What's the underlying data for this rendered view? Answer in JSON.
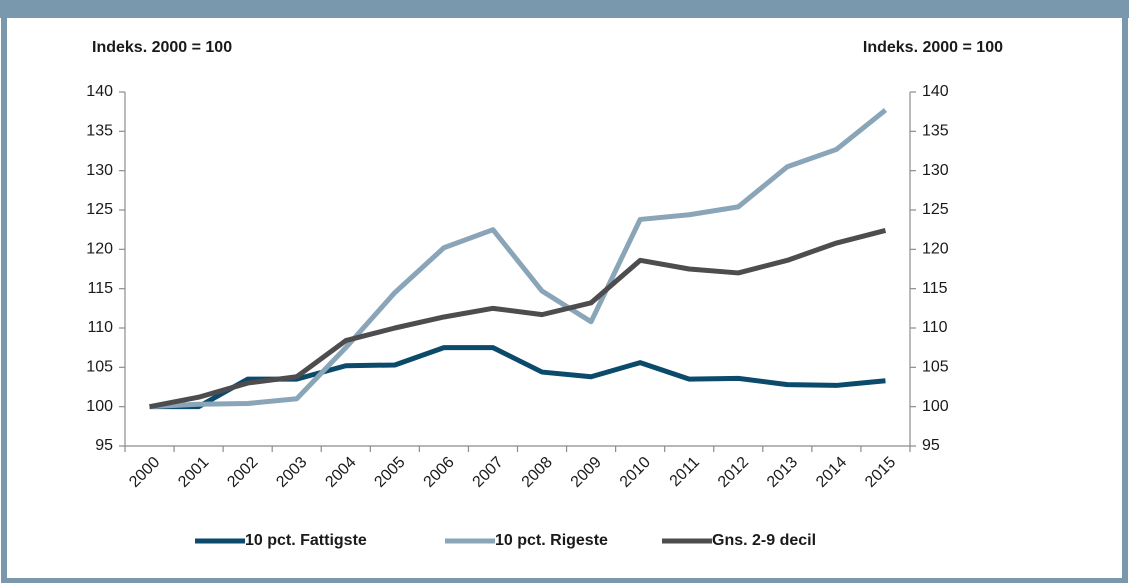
{
  "chart_data": {
    "type": "line",
    "ylabel": "Indeks. 2000 = 100",
    "y2label": "Indeks. 2000 = 100",
    "categories": [
      "2000",
      "2001",
      "2002",
      "2003",
      "2004",
      "2005",
      "2006",
      "2007",
      "2008",
      "2009",
      "2010",
      "2011",
      "2012",
      "2013",
      "2014",
      "2015"
    ],
    "series": [
      {
        "name": "10 pct. Fattigste",
        "color": "#0b4a6b",
        "values": [
          100,
          100,
          103.5,
          103.5,
          105.2,
          105.3,
          107.5,
          107.5,
          104.4,
          103.8,
          105.6,
          103.5,
          103.6,
          102.8,
          102.7,
          103.3
        ]
      },
      {
        "name": "10 pct. Rigeste",
        "color": "#8aa5b8",
        "values": [
          100,
          100.3,
          100.4,
          101,
          107.5,
          114.5,
          120.2,
          122.5,
          114.7,
          110.8,
          123.8,
          124.4,
          125.4,
          130.5,
          132.7,
          137.7
        ]
      },
      {
        "name": "Gns. 2-9 decil",
        "color": "#4d4d4f",
        "values": [
          100,
          101.2,
          103,
          103.8,
          108.4,
          110,
          111.4,
          112.5,
          111.7,
          113.2,
          118.6,
          117.5,
          117,
          118.6,
          120.8,
          122.4
        ]
      }
    ],
    "ylim": [
      95,
      140
    ],
    "yticks": [
      95,
      100,
      105,
      110,
      115,
      120,
      125,
      130,
      135,
      140
    ],
    "y2lim": [
      95,
      140
    ],
    "y2ticks": [
      95,
      100,
      105,
      110,
      115,
      120,
      125,
      130,
      135,
      140
    ],
    "legend": "bottom"
  }
}
